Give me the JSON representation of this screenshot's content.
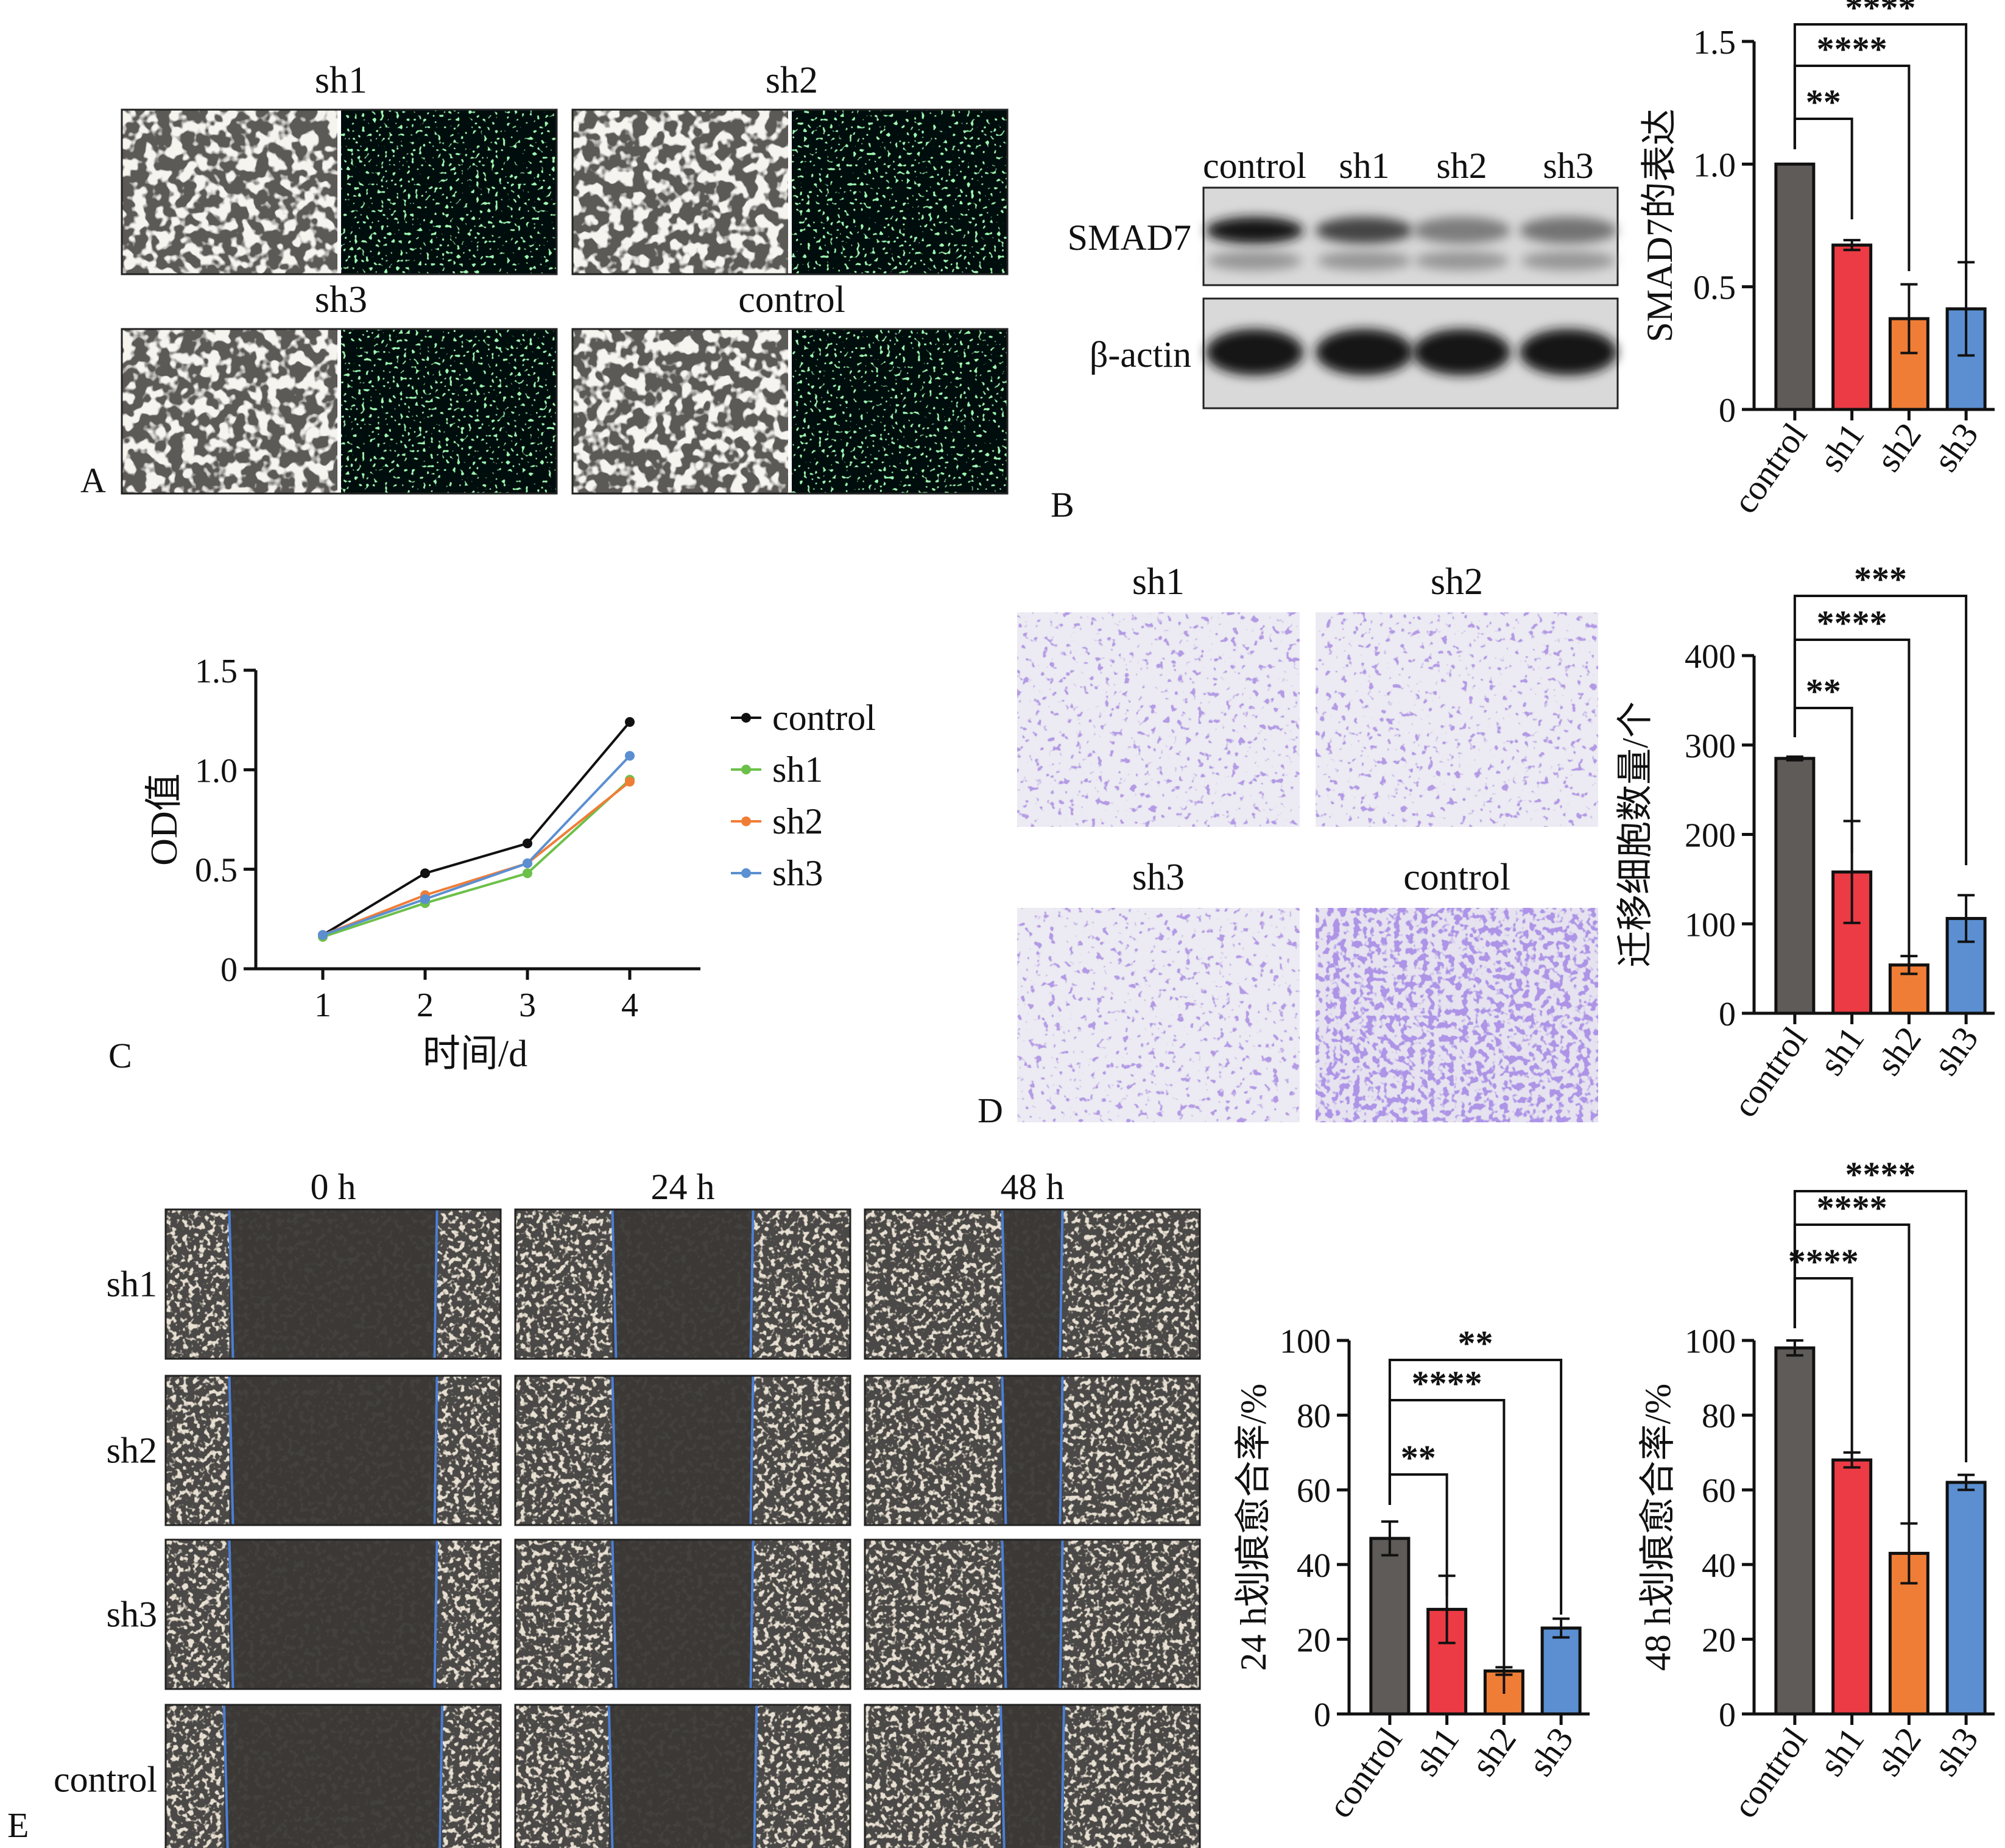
{
  "panel_labels": {
    "a": "A",
    "b": "B",
    "c": "C",
    "d": "D",
    "e": "E"
  },
  "panel_a": {
    "groups": [
      {
        "label": "sh1"
      },
      {
        "label": "sh2"
      },
      {
        "label": "sh3"
      },
      {
        "label": "control"
      }
    ]
  },
  "panel_b": {
    "blot_lanes": [
      "control",
      "sh1",
      "sh2",
      "sh3"
    ],
    "blot_rows": [
      {
        "label": "SMAD7",
        "intensities": [
          1.0,
          0.75,
          0.45,
          0.5
        ]
      },
      {
        "label": "β-actin",
        "intensities": [
          1.0,
          1.0,
          1.0,
          1.0
        ]
      }
    ]
  },
  "panel_c_legend": [
    {
      "label": "control",
      "color": "#111111"
    },
    {
      "label": "sh1",
      "color": "#6cc04a"
    },
    {
      "label": "sh2",
      "color": "#f07d36"
    },
    {
      "label": "sh3",
      "color": "#5b8fd1"
    }
  ],
  "panel_d": {
    "images": [
      "sh1",
      "sh2",
      "sh3",
      "control"
    ]
  },
  "panel_e": {
    "time_labels": [
      "0 h",
      "24 h",
      "48 h"
    ],
    "row_labels": [
      "sh1",
      "sh2",
      "sh3",
      "control"
    ]
  },
  "bar_colors": [
    "#5f5b58",
    "#ec3b44",
    "#f07d36",
    "#5b8fd1"
  ],
  "chart_data": [
    {
      "id": "panel_b_bar",
      "type": "bar",
      "categories": [
        "control",
        "sh1",
        "sh2",
        "sh3"
      ],
      "values": [
        1.0,
        0.67,
        0.37,
        0.41
      ],
      "errors": [
        0.0,
        0.02,
        0.14,
        0.19
      ],
      "ylabel": "SMAD7的表达",
      "ylim": [
        0,
        1.5
      ],
      "yticks": [
        0,
        0.5,
        1.0,
        1.5
      ],
      "ytick_labels": [
        "0",
        "0.5",
        "1.0",
        "1.5"
      ],
      "significance": [
        {
          "from": "control",
          "to": "sh1",
          "label": "**"
        },
        {
          "from": "control",
          "to": "sh2",
          "label": "****"
        },
        {
          "from": "control",
          "to": "sh3",
          "label": "****"
        }
      ]
    },
    {
      "id": "panel_c_line",
      "type": "line",
      "x": [
        1,
        2,
        3,
        4
      ],
      "xlabel": "时间/d",
      "ylabel": "OD值",
      "ylim": [
        0,
        1.5
      ],
      "yticks": [
        0,
        0.5,
        1.0,
        1.5
      ],
      "ytick_labels": [
        "0",
        "0.5",
        "1.0",
        "1.5"
      ],
      "series": [
        {
          "name": "control",
          "values": [
            0.17,
            0.48,
            0.63,
            1.24
          ]
        },
        {
          "name": "sh1",
          "values": [
            0.16,
            0.33,
            0.48,
            0.95
          ]
        },
        {
          "name": "sh2",
          "values": [
            0.17,
            0.37,
            0.53,
            0.94
          ]
        },
        {
          "name": "sh3",
          "values": [
            0.17,
            0.35,
            0.53,
            1.07
          ]
        }
      ]
    },
    {
      "id": "panel_d_bar",
      "type": "bar",
      "categories": [
        "control",
        "sh1",
        "sh2",
        "sh3"
      ],
      "values": [
        285,
        158,
        54,
        106
      ],
      "errors": [
        2,
        57,
        10,
        26
      ],
      "ylabel": "迁移细胞数量/个",
      "ylim": [
        0,
        400
      ],
      "yticks": [
        0,
        100,
        200,
        300,
        400
      ],
      "ytick_labels": [
        "0",
        "100",
        "200",
        "300",
        "400"
      ],
      "significance": [
        {
          "from": "control",
          "to": "sh1",
          "label": "**"
        },
        {
          "from": "control",
          "to": "sh2",
          "label": "****"
        },
        {
          "from": "control",
          "to": "sh3",
          "label": "***"
        }
      ]
    },
    {
      "id": "panel_e_bar_24h",
      "type": "bar",
      "categories": [
        "control",
        "sh1",
        "sh2",
        "sh3"
      ],
      "values": [
        47,
        28,
        11.5,
        23
      ],
      "errors": [
        4.5,
        9,
        1,
        2.5
      ],
      "ylabel": "24 h划痕愈合率/%",
      "ylim": [
        0,
        100
      ],
      "yticks": [
        0,
        20,
        40,
        60,
        80,
        100
      ],
      "ytick_labels": [
        "0",
        "20",
        "40",
        "60",
        "80",
        "100"
      ],
      "significance": [
        {
          "from": "control",
          "to": "sh1",
          "label": "**"
        },
        {
          "from": "control",
          "to": "sh2",
          "label": "****"
        },
        {
          "from": "control",
          "to": "sh3",
          "label": "**"
        }
      ]
    },
    {
      "id": "panel_e_bar_48h",
      "type": "bar",
      "categories": [
        "control",
        "sh1",
        "sh2",
        "sh3"
      ],
      "values": [
        98,
        68,
        43,
        62
      ],
      "errors": [
        2,
        2,
        8,
        2
      ],
      "ylabel": "48 h划痕愈合率/%",
      "ylim": [
        0,
        100
      ],
      "yticks": [
        0,
        20,
        40,
        60,
        80,
        100
      ],
      "ytick_labels": [
        "0",
        "20",
        "40",
        "60",
        "80",
        "100"
      ],
      "significance": [
        {
          "from": "control",
          "to": "sh1",
          "label": "****"
        },
        {
          "from": "control",
          "to": "sh2",
          "label": "****"
        },
        {
          "from": "control",
          "to": "sh3",
          "label": "****"
        }
      ]
    }
  ]
}
